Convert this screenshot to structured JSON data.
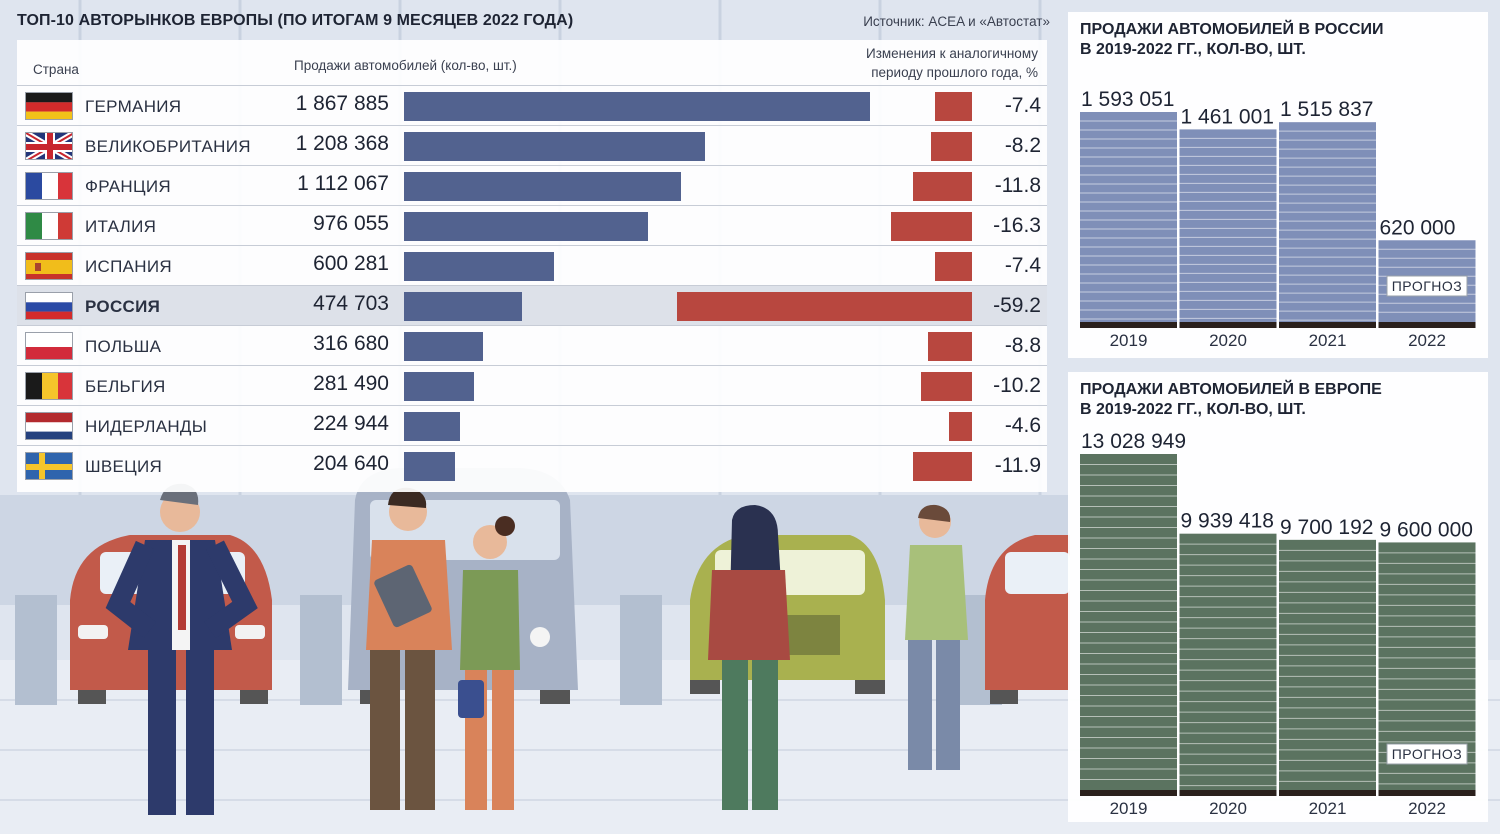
{
  "title": "ТОП-10 АВТОРЫНКОВ ЕВРОПЫ (ПО ИТОГАМ 9 МЕСЯЦЕВ 2022 ГОДА)",
  "source": "Источник: ACEA и «Автостат»",
  "colors": {
    "sales_bar": "#52628f",
    "change_bar": "#b8473f",
    "russia_bar": "#7f8fb8",
    "europe_bar": "#5b7360",
    "base": "#2a201c"
  },
  "chart_data": [
    {
      "type": "bar",
      "orientation": "horizontal",
      "columns": {
        "country": "Страна",
        "sales": "Продажи автомобилей (кол-во, шт.)",
        "change_line1": "Изменения к аналогичному",
        "change_line2": "периоду прошлого года, %"
      },
      "highlight": "РОССИЯ",
      "rows": [
        {
          "flag": "germany-flag",
          "country": "ГЕРМАНИЯ",
          "sales": 1867885,
          "sales_label": "1 867 885",
          "change": -7.4,
          "change_label": "-7.4"
        },
        {
          "flag": "uk-flag",
          "country": "ВЕЛИКОБРИТАНИЯ",
          "sales": 1208368,
          "sales_label": "1 208 368",
          "change": -8.2,
          "change_label": "-8.2"
        },
        {
          "flag": "france-flag",
          "country": "ФРАНЦИЯ",
          "sales": 1112067,
          "sales_label": "1 112 067",
          "change": -11.8,
          "change_label": "-11.8"
        },
        {
          "flag": "italy-flag",
          "country": "ИТАЛИЯ",
          "sales": 976055,
          "sales_label": "976 055",
          "change": -16.3,
          "change_label": "-16.3"
        },
        {
          "flag": "spain-flag",
          "country": "ИСПАНИЯ",
          "sales": 600281,
          "sales_label": "600 281",
          "change": -7.4,
          "change_label": "-7.4"
        },
        {
          "flag": "russia-flag",
          "country": "РОССИЯ",
          "sales": 474703,
          "sales_label": "474 703",
          "change": -59.2,
          "change_label": "-59.2"
        },
        {
          "flag": "poland-flag",
          "country": "ПОЛЬША",
          "sales": 316680,
          "sales_label": "316 680",
          "change": -8.8,
          "change_label": "-8.8"
        },
        {
          "flag": "belgium-flag",
          "country": "БЕЛЬГИЯ",
          "sales": 281490,
          "sales_label": "281 490",
          "change": -10.2,
          "change_label": "-10.2"
        },
        {
          "flag": "netherlands-flag",
          "country": "НИДЕРЛАНДЫ",
          "sales": 224944,
          "sales_label": "224 944",
          "change": -4.6,
          "change_label": "-4.6"
        },
        {
          "flag": "sweden-flag",
          "country": "ШВЕЦИЯ",
          "sales": 204640,
          "sales_label": "204 640",
          "change": -11.9,
          "change_label": "-11.9"
        }
      ]
    },
    {
      "type": "bar",
      "title_line1": "ПРОДАЖИ АВТОМОБИЛЕЙ В РОССИИ",
      "title_line2": "В 2019-2022 ГГ., КОЛ-ВО, ШТ.",
      "categories": [
        "2019",
        "2020",
        "2021",
        "2022"
      ],
      "values": [
        1593051,
        1461001,
        1515837,
        620000
      ],
      "value_labels": [
        "1 593 051",
        "1 461 001",
        "1 515 837",
        "620 000"
      ],
      "forecast_label": "ПРОГНОЗ",
      "forecast_category": "2022"
    },
    {
      "type": "bar",
      "title_line1": "ПРОДАЖИ АВТОМОБИЛЕЙ В ЕВРОПЕ",
      "title_line2": "В 2019-2022 ГГ., КОЛ-ВО, ШТ.",
      "categories": [
        "2019",
        "2020",
        "2021",
        "2022"
      ],
      "values": [
        13028949,
        9939418,
        9700192,
        9600000
      ],
      "value_labels": [
        "13 028 949",
        "9 939 418",
        "9 700 192",
        "9 600 000"
      ],
      "forecast_label": "ПРОГНОЗ",
      "forecast_category": "2022"
    }
  ]
}
